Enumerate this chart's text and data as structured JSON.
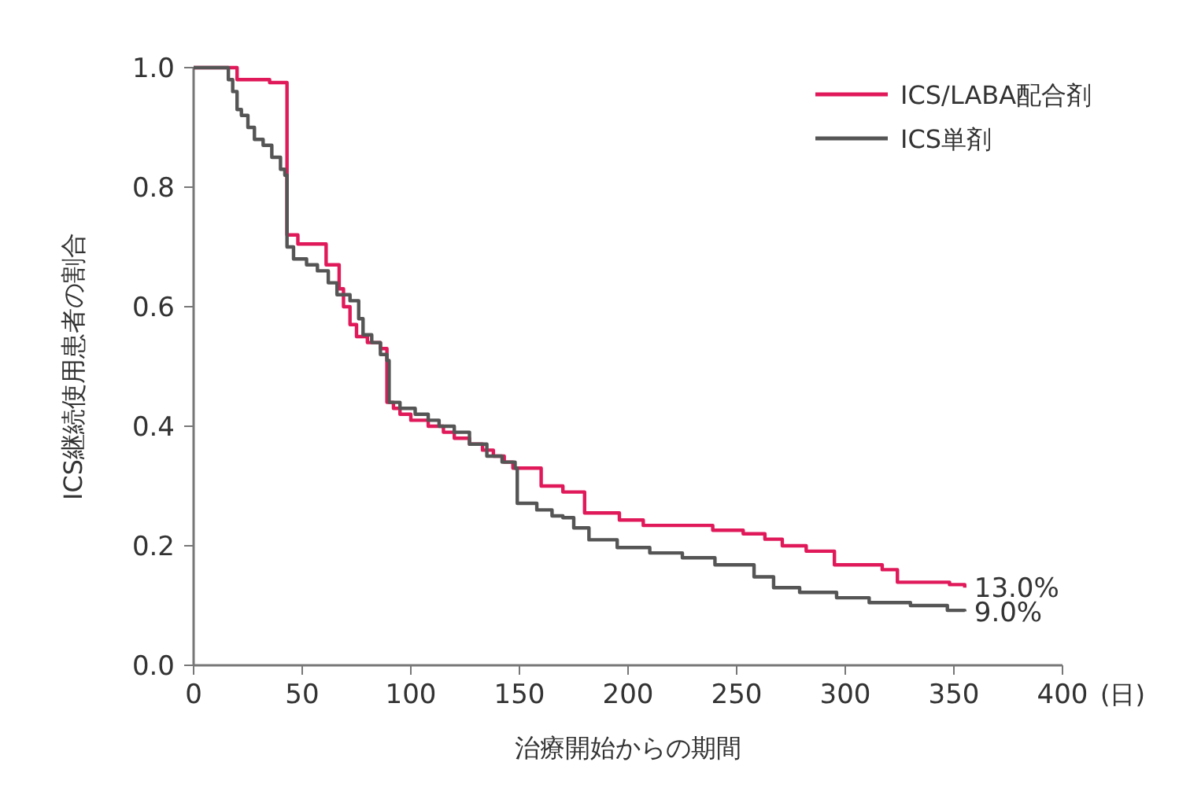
{
  "chart_data": {
    "type": "step",
    "xlabel": "治療開始からの期間",
    "ylabel": "ICS継続使用患者の割合",
    "xlim": [
      0,
      400
    ],
    "xticks": [
      0,
      50,
      100,
      150,
      200,
      250,
      300,
      350,
      400
    ],
    "ylim": [
      0,
      1
    ],
    "yticks": [
      {
        "value": 0,
        "label": "0.0"
      },
      {
        "value": 0.2,
        "label": "0.2"
      },
      {
        "value": 0.4,
        "label": "0.4"
      },
      {
        "value": 0.6,
        "label": "0.6"
      },
      {
        "value": 0.8,
        "label": "0.8"
      },
      {
        "value": 1,
        "label": "1.0"
      }
    ],
    "legend": "top right",
    "grid": false,
    "line_style": "solid",
    "marker": "none",
    "series": [
      {
        "name": "ICS/LABA配合剤",
        "color": "#e0195a",
        "x": [
          0,
          20,
          35,
          43,
          48,
          61,
          67,
          69,
          72,
          75,
          80,
          86,
          89,
          92,
          95,
          100,
          108,
          115,
          120,
          127,
          133,
          138,
          143,
          147,
          160,
          170,
          180,
          196,
          207,
          239,
          253,
          263,
          271,
          282,
          295,
          317,
          324,
          348,
          355
        ],
        "values": [
          1.0,
          0.98,
          0.975,
          0.72,
          0.705,
          0.67,
          0.63,
          0.6,
          0.57,
          0.55,
          0.54,
          0.53,
          0.44,
          0.43,
          0.42,
          0.41,
          0.4,
          0.39,
          0.38,
          0.37,
          0.36,
          0.35,
          0.34,
          0.33,
          0.3,
          0.29,
          0.255,
          0.243,
          0.234,
          0.226,
          0.22,
          0.211,
          0.2,
          0.191,
          0.168,
          0.16,
          0.139,
          0.135,
          0.13
        ]
      },
      {
        "name": "ICS単剤",
        "color": "#555555",
        "x": [
          0,
          16,
          18,
          20,
          22,
          25,
          28,
          32,
          36,
          40,
          42,
          43,
          46,
          52,
          57,
          62,
          66,
          72,
          76,
          78,
          82,
          86,
          89,
          90,
          95,
          102,
          108,
          113,
          120,
          127,
          135,
          142,
          148,
          149,
          158,
          165,
          170,
          175,
          182,
          195,
          210,
          225,
          240,
          258,
          267,
          279,
          296,
          311,
          330,
          347,
          355
        ],
        "values": [
          1.0,
          0.98,
          0.96,
          0.93,
          0.92,
          0.9,
          0.88,
          0.87,
          0.85,
          0.83,
          0.82,
          0.7,
          0.68,
          0.67,
          0.66,
          0.64,
          0.62,
          0.61,
          0.58,
          0.553,
          0.54,
          0.52,
          0.51,
          0.44,
          0.43,
          0.42,
          0.41,
          0.4,
          0.39,
          0.37,
          0.35,
          0.34,
          0.33,
          0.271,
          0.26,
          0.25,
          0.247,
          0.23,
          0.21,
          0.197,
          0.188,
          0.18,
          0.168,
          0.148,
          0.13,
          0.122,
          0.113,
          0.105,
          0.1,
          0.092,
          0.09
        ]
      }
    ],
    "annotations": [
      {
        "text": "13.0%",
        "x": 355,
        "y": 0.13
      },
      {
        "text": "9.0%",
        "x": 355,
        "y": 0.09
      },
      "(日)"
    ]
  }
}
